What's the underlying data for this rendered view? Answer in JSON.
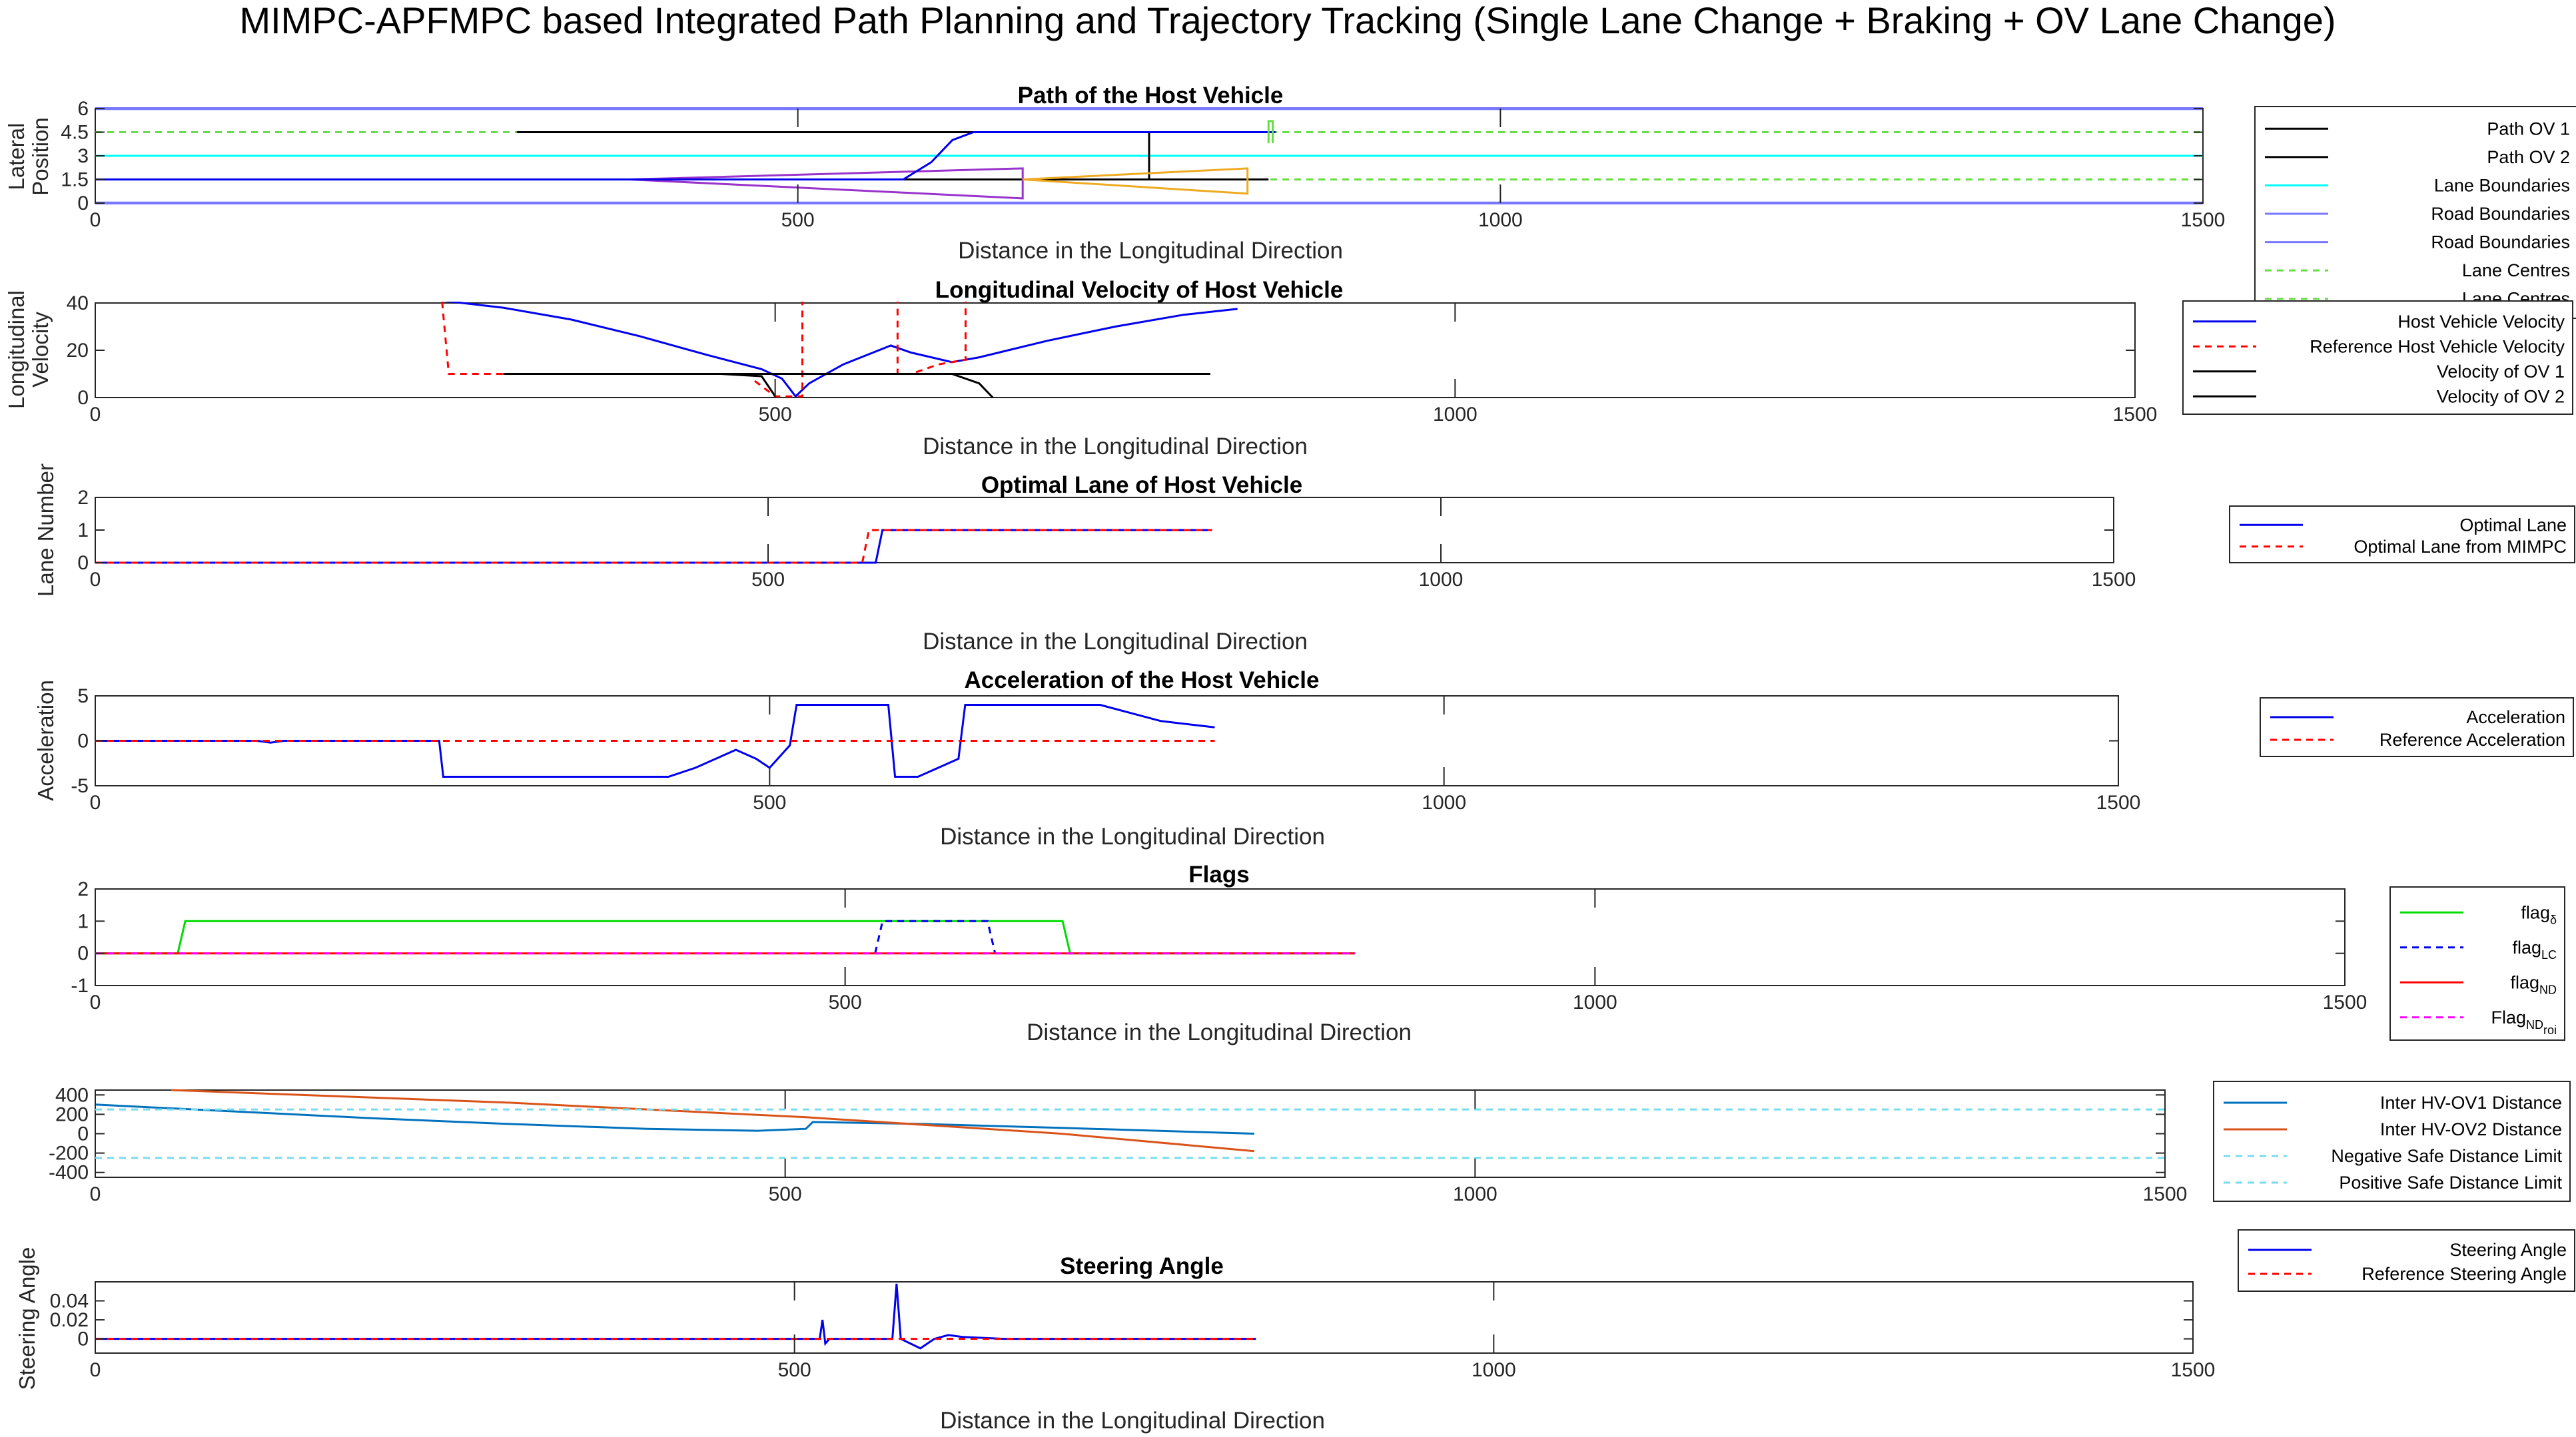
{
  "figure": {
    "title": "MIMPC-APFMPC based Integrated Path Planning and Trajectory Tracking (Single Lane Change + Braking + OV Lane Change)"
  },
  "chart_data": [
    {
      "id": "path",
      "type": "line",
      "title": "Path of the Host Vehicle",
      "xlabel": "Distance in the Longitudinal Direction",
      "ylabel": [
        "Lateral",
        "Position"
      ],
      "xlim": [
        0,
        1500
      ],
      "ylim": [
        0,
        6
      ],
      "xticks": [
        0,
        500,
        1000,
        1500
      ],
      "yticks": [
        0,
        1.5,
        3,
        4.5,
        6
      ],
      "yticklabels": [
        "0",
        "1.5",
        "3",
        "4.5",
        "6"
      ],
      "legend": [
        "Path OV 1",
        "Path OV 2",
        "Lane Boundaries",
        "Road Boundaries",
        "Road Boundaries",
        "Lane Centres",
        "Lane Centres"
      ],
      "series": [
        {
          "color": "#00FFFF",
          "dash": "solid",
          "width": 2,
          "points": [
            [
              0,
              3
            ],
            [
              1500,
              3
            ]
          ]
        },
        {
          "color": "#7777FF",
          "dash": "solid",
          "width": 3,
          "points": [
            [
              0,
              6
            ],
            [
              1500,
              6
            ]
          ]
        },
        {
          "color": "#7777FF",
          "dash": "solid",
          "width": 3,
          "points": [
            [
              0,
              0
            ],
            [
              1500,
              0
            ]
          ]
        },
        {
          "color": "#66DD44",
          "dash": "10,8",
          "width": 2,
          "points": [
            [
              0,
              4.5
            ],
            [
              1500,
              4.5
            ]
          ]
        },
        {
          "color": "#66DD44",
          "dash": "10,8",
          "width": 2,
          "points": [
            [
              0,
              1.5
            ],
            [
              1500,
              1.5
            ]
          ]
        },
        {
          "color": "#000000",
          "dash": "solid",
          "width": 2,
          "points": [
            [
              0,
              1.5
            ],
            [
              760,
              1.5
            ]
          ]
        },
        {
          "color": "#000000",
          "dash": "solid",
          "width": 2,
          "points": [
            [
              300,
              4.5
            ],
            [
              750,
              4.5
            ],
            [
              750,
              1.5
            ],
            [
              835,
              1.5
            ]
          ]
        },
        {
          "color": "#9933CC",
          "dash": "solid",
          "width": 2,
          "points": [
            [
              380,
              1.5
            ],
            [
              660,
              0.3
            ],
            [
              660,
              2.2
            ],
            [
              380,
              1.5
            ]
          ]
        },
        {
          "color": "#EEAA22",
          "dash": "solid",
          "width": 2,
          "points": [
            [
              660,
              1.5
            ],
            [
              820,
              0.6
            ],
            [
              820,
              2.2
            ],
            [
              660,
              1.5
            ]
          ]
        },
        {
          "color": "#0000EE",
          "dash": "solid",
          "width": 2,
          "points": [
            [
              0,
              1.5
            ],
            [
              575,
              1.5
            ],
            [
              595,
              2.6
            ],
            [
              610,
              4.0
            ],
            [
              625,
              4.5
            ],
            [
              840,
              4.5
            ]
          ]
        },
        {
          "color": "#66DD44",
          "dash": "solid",
          "width": 2,
          "points": [
            [
              835,
              3.8
            ],
            [
              835,
              5.2
            ],
            [
              838,
              5.2
            ],
            [
              838,
              3.8
            ]
          ]
        }
      ]
    },
    {
      "id": "velocity",
      "type": "line",
      "title": "Longitudinal Velocity of Host Vehicle",
      "xlabel": "Distance in the Longitudinal Direction",
      "ylabel": [
        "Longitudinal",
        "Velocity"
      ],
      "xlim": [
        0,
        1500
      ],
      "ylim": [
        0,
        40
      ],
      "xticks": [
        0,
        500,
        1000,
        1500
      ],
      "yticks": [
        0,
        20,
        40
      ],
      "yticklabels": [
        "0",
        "20",
        "40"
      ],
      "legend": [
        "Host Vehicle Velocity",
        "Reference Host Vehicle Velocity",
        "Velocity of OV 1",
        "Velocity of OV 2"
      ],
      "series": [
        {
          "color": "#0000EE",
          "dash": "solid",
          "width": 2,
          "points": [
            [
              0,
              41
            ],
            [
              255,
              41
            ],
            [
              300,
              38
            ],
            [
              350,
              33
            ],
            [
              400,
              26
            ],
            [
              450,
              18
            ],
            [
              490,
              12
            ],
            [
              505,
              8
            ],
            [
              515,
              0.5
            ],
            [
              525,
              6
            ],
            [
              550,
              14
            ],
            [
              585,
              22
            ],
            [
              600,
              19
            ],
            [
              630,
              15
            ],
            [
              650,
              17
            ],
            [
              700,
              24
            ],
            [
              750,
              30
            ],
            [
              800,
              35
            ],
            [
              840,
              37.5
            ]
          ]
        },
        {
          "color": "#FF0000",
          "dash": "10,8",
          "width": 2,
          "points": [
            [
              0,
              41
            ],
            [
              255,
              41
            ],
            [
              260,
              10
            ],
            [
              300,
              10
            ]
          ]
        },
        {
          "color": "#FF0000",
          "dash": "10,8",
          "width": 2,
          "points": [
            [
              485,
              7
            ],
            [
              500,
              0.5
            ],
            [
              520,
              0.5
            ],
            [
              520,
              41
            ],
            [
              590,
              41
            ],
            [
              590,
              10
            ],
            [
              600,
              10
            ],
            [
              620,
              14
            ],
            [
              640,
              16
            ],
            [
              640,
              41
            ],
            [
              840,
              41
            ]
          ]
        },
        {
          "color": "#000000",
          "dash": "solid",
          "width": 2,
          "points": [
            [
              300,
              10
            ],
            [
              820,
              10
            ]
          ]
        },
        {
          "color": "#000000",
          "dash": "solid",
          "width": 2,
          "points": [
            [
              460,
              10
            ],
            [
              490,
              9
            ],
            [
              500,
              0.5
            ]
          ]
        },
        {
          "color": "#000000",
          "dash": "solid",
          "width": 2,
          "points": [
            [
              560,
              10
            ],
            [
              630,
              10
            ],
            [
              650,
              6
            ],
            [
              660,
              0
            ]
          ]
        }
      ]
    },
    {
      "id": "lane",
      "type": "line",
      "title": "Optimal Lane of Host Vehicle",
      "xlabel": "Distance in the Longitudinal Direction",
      "ylabel": [
        "Lane Number"
      ],
      "xlim": [
        0,
        1500
      ],
      "ylim": [
        0,
        2
      ],
      "xticks": [
        0,
        500,
        1000,
        1500
      ],
      "yticks": [
        0,
        1,
        2
      ],
      "yticklabels": [
        "0",
        "1",
        "2"
      ],
      "legend": [
        "Optimal Lane",
        "Optimal Lane from MIMPC"
      ],
      "series": [
        {
          "color": "#0000EE",
          "dash": "solid",
          "width": 2,
          "points": [
            [
              0,
              0
            ],
            [
              580,
              0
            ],
            [
              585,
              1
            ],
            [
              830,
              1
            ]
          ]
        },
        {
          "color": "#FF0000",
          "dash": "10,8",
          "width": 2,
          "points": [
            [
              0,
              0
            ],
            [
              570,
              0
            ],
            [
              575,
              1
            ],
            [
              830,
              1
            ]
          ]
        }
      ]
    },
    {
      "id": "accel",
      "type": "line",
      "title": "Acceleration of the Host Vehicle",
      "xlabel": "Distance in the Longitudinal Direction",
      "ylabel": [
        "Acceleration"
      ],
      "xlim": [
        0,
        1500
      ],
      "ylim": [
        -5,
        5
      ],
      "xticks": [
        0,
        500,
        1000,
        1500
      ],
      "yticks": [
        -5,
        0,
        5
      ],
      "yticklabels": [
        "-5",
        "0",
        "5"
      ],
      "legend": [
        "Acceleration",
        "Reference Acceleration"
      ],
      "series": [
        {
          "color": "#0000EE",
          "dash": "solid",
          "width": 2,
          "points": [
            [
              0,
              0
            ],
            [
              120,
              0
            ],
            [
              130,
              -0.2
            ],
            [
              140,
              0
            ],
            [
              255,
              0
            ],
            [
              258,
              -4
            ],
            [
              425,
              -4
            ],
            [
              445,
              -3
            ],
            [
              475,
              -1
            ],
            [
              490,
              -2
            ],
            [
              500,
              -3
            ],
            [
              515,
              -0.5
            ],
            [
              520,
              4
            ],
            [
              588,
              4
            ],
            [
              593,
              -4
            ],
            [
              610,
              -4
            ],
            [
              640,
              -2
            ],
            [
              645,
              4
            ],
            [
              745,
              4
            ],
            [
              790,
              2.2
            ],
            [
              830,
              1.5
            ]
          ]
        },
        {
          "color": "#FF0000",
          "dash": "10,8",
          "width": 2,
          "points": [
            [
              0,
              0
            ],
            [
              830,
              0
            ]
          ]
        }
      ]
    },
    {
      "id": "flags",
      "type": "line",
      "title": "Flags",
      "xlabel": "Distance in the Longitudinal Direction",
      "ylabel": [],
      "xlim": [
        0,
        1500
      ],
      "ylim": [
        -1,
        2
      ],
      "xticks": [
        0,
        500,
        1000,
        1500
      ],
      "yticks": [
        -1,
        0,
        1,
        2
      ],
      "yticklabels": [
        "-1",
        "0",
        "1",
        "2"
      ],
      "legend": [
        [
          "flag",
          "δ"
        ],
        [
          "flag",
          "LC"
        ],
        [
          "flag",
          "ND"
        ],
        [
          "Flag",
          "ND",
          "roi"
        ]
      ],
      "series": [
        {
          "color": "#00DD00",
          "dash": "solid",
          "width": 2,
          "points": [
            [
              0,
              0
            ],
            [
              55,
              0
            ],
            [
              60,
              1
            ],
            [
              645,
              1
            ],
            [
              650,
              0
            ],
            [
              840,
              0
            ]
          ]
        },
        {
          "color": "#0000EE",
          "dash": "10,8",
          "width": 2,
          "points": [
            [
              520,
              0
            ],
            [
              525,
              1
            ],
            [
              595,
              1
            ],
            [
              600,
              0
            ]
          ]
        },
        {
          "color": "#FF0000",
          "dash": "solid",
          "width": 2,
          "points": [
            [
              0,
              0
            ],
            [
              840,
              0
            ]
          ]
        },
        {
          "color": "#FF00FF",
          "dash": "10,8",
          "width": 2,
          "points": [
            [
              0,
              0
            ],
            [
              840,
              0
            ]
          ]
        }
      ]
    },
    {
      "id": "distance",
      "type": "line",
      "title": "",
      "xlabel": "",
      "ylabel": [],
      "xlim": [
        0,
        1500
      ],
      "ylim": [
        -450,
        450
      ],
      "xticks": [
        0,
        500,
        1000,
        1500
      ],
      "yticks": [
        -400,
        -200,
        0,
        200,
        400
      ],
      "yticklabels": [
        "-400",
        "-200",
        "0",
        "200",
        "400"
      ],
      "legend": [
        "Inter HV-OV1 Distance",
        "Inter HV-OV2 Distance",
        "Negative Safe Distance Limit",
        "Positive Safe Distance Limit"
      ],
      "series": [
        {
          "color": "#0072BD",
          "dash": "solid",
          "width": 2,
          "points": [
            [
              0,
              300
            ],
            [
              100,
              230
            ],
            [
              200,
              160
            ],
            [
              300,
              100
            ],
            [
              400,
              50
            ],
            [
              480,
              30
            ],
            [
              515,
              50
            ],
            [
              520,
              120
            ],
            [
              600,
              100
            ],
            [
              700,
              60
            ],
            [
              840,
              0
            ]
          ]
        },
        {
          "color": "#D95319",
          "dash": "solid",
          "width": 2,
          "points": [
            [
              55,
              450
            ],
            [
              300,
              320
            ],
            [
              515,
              170
            ],
            [
              700,
              0
            ],
            [
              840,
              -180
            ]
          ]
        },
        {
          "color": "#77DDEE",
          "dash": "10,8",
          "width": 2,
          "points": [
            [
              0,
              -250
            ],
            [
              1500,
              -250
            ]
          ]
        },
        {
          "color": "#77DDEE",
          "dash": "10,8",
          "width": 2,
          "points": [
            [
              0,
              250
            ],
            [
              1500,
              250
            ]
          ]
        }
      ]
    },
    {
      "id": "steer",
      "type": "line",
      "title": "Steering Angle",
      "xlabel": "Distance in the Longitudinal Direction",
      "ylabel": [
        "Steering Angle"
      ],
      "xlim": [
        0,
        1500
      ],
      "ylim": [
        -0.015,
        0.06
      ],
      "xticks": [
        0,
        500,
        1000,
        1500
      ],
      "yticks": [
        0,
        0.02,
        0.04
      ],
      "yticklabels": [
        "0",
        "0.02",
        "0.04"
      ],
      "legend": [
        "Steering Angle",
        "Reference Steering Angle"
      ],
      "series": [
        {
          "color": "#0000EE",
          "dash": "solid",
          "width": 2,
          "points": [
            [
              0,
              0
            ],
            [
              518,
              0
            ],
            [
              520,
              0.02
            ],
            [
              522,
              -0.005
            ],
            [
              525,
              0
            ],
            [
              570,
              0
            ],
            [
              573,
              0.058
            ],
            [
              576,
              0
            ],
            [
              590,
              -0.01
            ],
            [
              600,
              0
            ],
            [
              610,
              0.004
            ],
            [
              620,
              0.002
            ],
            [
              650,
              0
            ],
            [
              830,
              0
            ]
          ]
        },
        {
          "color": "#FF0000",
          "dash": "10,8",
          "width": 2,
          "points": [
            [
              0,
              0
            ],
            [
              830,
              0
            ]
          ]
        }
      ]
    }
  ]
}
